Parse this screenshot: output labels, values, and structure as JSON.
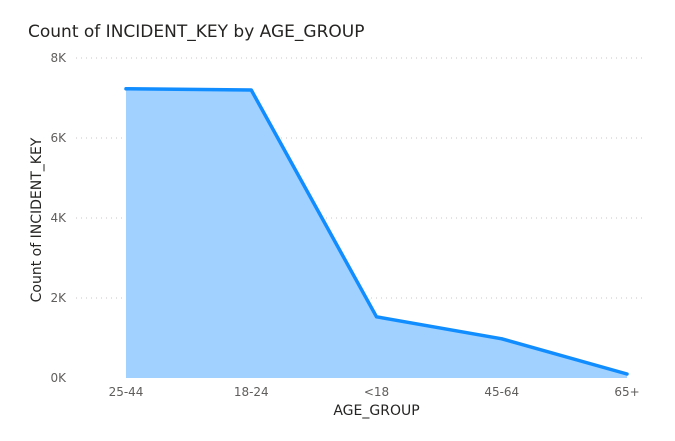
{
  "chart_data": {
    "type": "area",
    "title": "Count of INCIDENT_KEY by AGE_GROUP",
    "xlabel": "AGE_GROUP",
    "ylabel": "Count of INCIDENT_KEY",
    "categories": [
      "25-44",
      "18-24",
      "<18",
      "45-64",
      "65+"
    ],
    "series": [
      {
        "values": [
          7230,
          7200,
          1530,
          980,
          100
        ]
      }
    ],
    "ylim": [
      0,
      8000
    ],
    "yticks": [
      {
        "value": 0,
        "label": "0K"
      },
      {
        "value": 2000,
        "label": "2K"
      },
      {
        "value": 4000,
        "label": "4K"
      },
      {
        "value": 6000,
        "label": "6K"
      },
      {
        "value": 8000,
        "label": "8K"
      }
    ],
    "grid": true,
    "legend": "none",
    "colors": {
      "line": "#118DFF",
      "fill": "#A0D1FF",
      "grid": "#C8C6C4"
    }
  }
}
